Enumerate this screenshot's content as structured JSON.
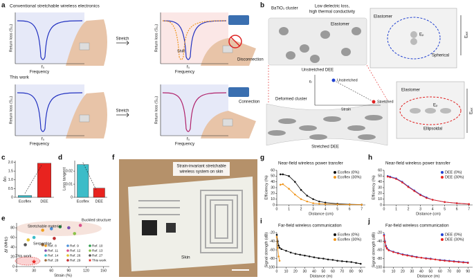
{
  "figure": {
    "panel_labels": [
      "a",
      "b",
      "c",
      "d",
      "e",
      "f",
      "g",
      "h",
      "i",
      "j"
    ],
    "a": {
      "top_title": "Conventional stretchable wireless electronics",
      "bottom_title": "This work",
      "y_label": "Return loss (S₁₁)",
      "x_label": "Frequency",
      "f0": "f₀",
      "stretch": "Stretch",
      "shift": "Shift",
      "disconnection": "Disconnection",
      "connection": "Connection"
    },
    "b": {
      "cluster": "BaTiO₃ cluster",
      "low_loss": [
        "Low dielectric loss,",
        "high thermal conductivity"
      ],
      "elastomer": "Elastomer",
      "unstretched_dee": "Unstretched DEE",
      "ep": "Eₚ",
      "spherical": "Spherical",
      "eext": "Eₑₓₜ",
      "unstretched": "Unstretched",
      "stretched": "Stretched",
      "strain": "Strain",
      "er": "εᵣ",
      "deformed": "Deformed cluster",
      "stretched_dee": "Stretched DEE",
      "ellipsoidal": "Ellipsoidal"
    },
    "f": {
      "caption": [
        "Strain-invariant stretchable",
        "wireless system on skin"
      ],
      "skin": "Skin"
    }
  },
  "chart_data": [
    {
      "type": "bar",
      "y_label": "Δεᵣ",
      "categories": [
        "Ecoflex",
        "DEE"
      ],
      "values": [
        0.1,
        1.95
      ],
      "colors": [
        "#3cbcc8",
        "#e8231f"
      ],
      "ylim": [
        0,
        2.1
      ],
      "yticks": [
        0,
        0.5,
        {
          "value": 1,
          "label": "1.0"
        },
        1.5,
        {
          "value": 2,
          "label": "2.0"
        }
      ]
    },
    {
      "type": "bar",
      "y_label": "Loss tangent",
      "categories": [
        "Ecoflex",
        "DEE"
      ],
      "values": [
        0.025,
        0.007
      ],
      "colors": [
        "#3cbcc8",
        "#e8231f"
      ],
      "ylim": [
        0,
        0.028
      ],
      "yticks": [
        0,
        0.01,
        0.02
      ]
    },
    {
      "type": "scatter",
      "x_label": "Strain (%)",
      "y_label": "Δf (MHz)",
      "xlim": [
        0,
        160
      ],
      "xticks": [
        0,
        30,
        60,
        90,
        120,
        150
      ],
      "ylim": [
        0,
        90
      ],
      "yticks": [
        0,
        20,
        40,
        60,
        80
      ],
      "legend": "lower right",
      "annotations": [
        "Stretchable material",
        "Buckled structure",
        "Serpentine",
        "This work"
      ],
      "series": [
        {
          "name": "Ref. 8",
          "color": "#f0a020",
          "x": [
            45
          ],
          "values": [
            75
          ]
        },
        {
          "name": "Ref. 9",
          "color": "#4a90d9",
          "x": [
            60
          ],
          "values": [
            78
          ]
        },
        {
          "name": "Ref. 10",
          "color": "#2e9e4f",
          "x": [
            75
          ],
          "values": [
            82
          ]
        },
        {
          "name": "Ref. 11",
          "color": "#7b4fb0",
          "x": [
            90
          ],
          "values": [
            80
          ]
        },
        {
          "name": "Ref. 12",
          "color": "#d94f8a",
          "x": [
            110
          ],
          "values": [
            85
          ]
        },
        {
          "name": "Ref. 13",
          "color": "#8bc34a",
          "x": [
            100
          ],
          "values": [
            68
          ]
        },
        {
          "name": "Ref. 14",
          "color": "#3cbcc8",
          "x": [
            30
          ],
          "values": [
            60
          ]
        },
        {
          "name": "Ref. 26",
          "color": "#e0c030",
          "x": [
            20
          ],
          "values": [
            55
          ]
        },
        {
          "name": "Ref. 27",
          "color": "#555555",
          "x": [
            15
          ],
          "values": [
            45
          ]
        },
        {
          "name": "Ref. 28",
          "color": "#9c6b3c",
          "x": [
            45
          ],
          "values": [
            45
          ]
        },
        {
          "name": "Ref. 29",
          "color": "#c03030",
          "x": [
            65
          ],
          "values": [
            58
          ]
        },
        {
          "name": "This work",
          "color": "#e8231f",
          "marker": "star",
          "x": [
            30
          ],
          "values": [
            10
          ]
        }
      ]
    },
    {
      "type": "line",
      "title": "Near-field wireless power transfer",
      "x_label": "Distance (cm)",
      "y_label": "Efficiency (%)",
      "xlim": [
        0,
        7.3
      ],
      "xticks": [
        0,
        1,
        2,
        3,
        4,
        5,
        6,
        7
      ],
      "ylim": [
        0,
        60
      ],
      "yticks": [
        0,
        10,
        20,
        30,
        40,
        50,
        60
      ],
      "legend": "upper right",
      "series": [
        {
          "name": "Ecoflex (0%)",
          "color": "#111111",
          "x": [
            0.3,
            0.5,
            1,
            1.5,
            2,
            2.5,
            3,
            3.5,
            4,
            5,
            6,
            7
          ],
          "values": [
            53,
            53,
            50,
            40,
            26,
            16,
            10,
            6,
            4,
            2,
            1,
            0.5
          ]
        },
        {
          "name": "Ecoflex (30%)",
          "color": "#f0961e",
          "x": [
            0.3,
            0.5,
            1,
            1.5,
            2,
            2.5,
            3,
            3.5,
            4,
            5,
            6,
            7
          ],
          "values": [
            35,
            36,
            28,
            18,
            10,
            6,
            3,
            2,
            1.5,
            1,
            0.5,
            0.3
          ]
        }
      ]
    },
    {
      "type": "line",
      "title": "Near-field wireless power transfer",
      "x_label": "Distance (cm)",
      "y_label": "Efficiency (%)",
      "xlim": [
        0,
        7.3
      ],
      "xticks": [
        0,
        1,
        2,
        3,
        4,
        5,
        6,
        7
      ],
      "ylim": [
        0,
        60
      ],
      "yticks": [
        0,
        10,
        20,
        30,
        40,
        50,
        60
      ],
      "legend": "upper right",
      "series": [
        {
          "name": "DEE (0%)",
          "color": "#1f3fd0",
          "x": [
            0.3,
            0.5,
            1,
            1.5,
            2,
            2.5,
            3,
            3.5,
            4,
            5,
            6,
            7
          ],
          "values": [
            50,
            49,
            46,
            40,
            32,
            25,
            18,
            13,
            9,
            5,
            3,
            1.5
          ]
        },
        {
          "name": "DEE (30%)",
          "color": "#e8231f",
          "x": [
            0.3,
            0.5,
            1,
            1.5,
            2,
            2.5,
            3,
            3.5,
            4,
            5,
            6,
            7
          ],
          "values": [
            49,
            48,
            45,
            39,
            31,
            24,
            17,
            12,
            9,
            5,
            3,
            1.5
          ]
        }
      ]
    },
    {
      "type": "line",
      "title": "Far-field wireless communication",
      "x_label": "Distance (m)",
      "y_label": "Signal strength (dB)",
      "xlim": [
        0,
        95
      ],
      "xticks": [
        0,
        10,
        20,
        30,
        40,
        50,
        60,
        70,
        80,
        90
      ],
      "ylim": [
        -100,
        -20
      ],
      "yticks": [
        -100,
        -80,
        -60,
        -40,
        -20
      ],
      "legend": "upper right",
      "series": [
        {
          "name": "Ecoflex (0%)",
          "color": "#111111",
          "x": [
            0,
            1,
            2,
            3,
            5,
            10,
            15,
            20,
            25,
            30,
            35,
            40,
            45,
            50,
            55,
            60,
            65,
            70,
            75,
            80,
            85,
            90
          ],
          "values": [
            -25,
            -40,
            -50,
            -55,
            -58,
            -62,
            -66,
            -69,
            -71,
            -73,
            -75,
            -77,
            -79,
            -80,
            -82,
            -83,
            -85,
            -86,
            -87,
            -88,
            -90,
            -92
          ]
        },
        {
          "name": "Ecoflex (30%)",
          "color": "#f0961e",
          "x": [
            0,
            1,
            2,
            3
          ],
          "values": [
            -30,
            -55,
            -75,
            -85
          ]
        }
      ]
    },
    {
      "type": "line",
      "title": "Far-field wireless communication",
      "x_label": "Distance (m)",
      "y_label": "Signal strength (dB)",
      "xlim": [
        0,
        95
      ],
      "xticks": [
        0,
        10,
        20,
        30,
        40,
        50,
        60,
        70,
        80,
        90
      ],
      "ylim": [
        -100,
        -20
      ],
      "yticks": [
        -100,
        -80,
        -60,
        -40,
        -20
      ],
      "legend": "upper right",
      "series": [
        {
          "name": "DEE (0%)",
          "color": "#1f3fd0",
          "x": [
            0,
            1,
            2,
            3,
            5,
            10,
            15,
            20,
            25,
            30,
            35,
            40,
            45,
            50,
            55,
            60,
            65,
            70,
            75,
            80,
            85,
            90
          ],
          "values": [
            -25,
            -40,
            -50,
            -55,
            -60,
            -64,
            -67,
            -70,
            -72,
            -74,
            -76,
            -78,
            -79,
            -80,
            -82,
            -83,
            -84,
            -85,
            -86,
            -87,
            -88,
            -89
          ]
        },
        {
          "name": "DEE (30%)",
          "color": "#e8231f",
          "x": [
            0,
            1,
            2,
            3,
            5,
            10,
            15,
            20,
            25,
            30,
            35,
            40,
            45,
            50,
            55,
            60,
            65,
            70,
            75,
            80,
            85,
            90
          ],
          "values": [
            -27,
            -42,
            -52,
            -57,
            -61,
            -65,
            -68,
            -71,
            -73,
            -75,
            -77,
            -78,
            -80,
            -81,
            -82,
            -84,
            -85,
            -86,
            -87,
            -88,
            -89,
            -90
          ]
        }
      ]
    }
  ]
}
